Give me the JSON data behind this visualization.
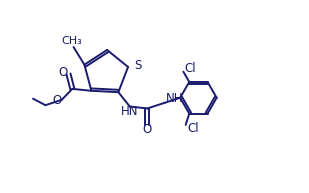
{
  "bg_color": "#ffffff",
  "line_color": "#1a1a6e",
  "line_width": 1.4,
  "font_size": 8.5,
  "figsize": [
    3.09,
    1.93
  ],
  "dpi": 100,
  "xlim": [
    0,
    10
  ],
  "ylim": [
    0,
    6.5
  ]
}
